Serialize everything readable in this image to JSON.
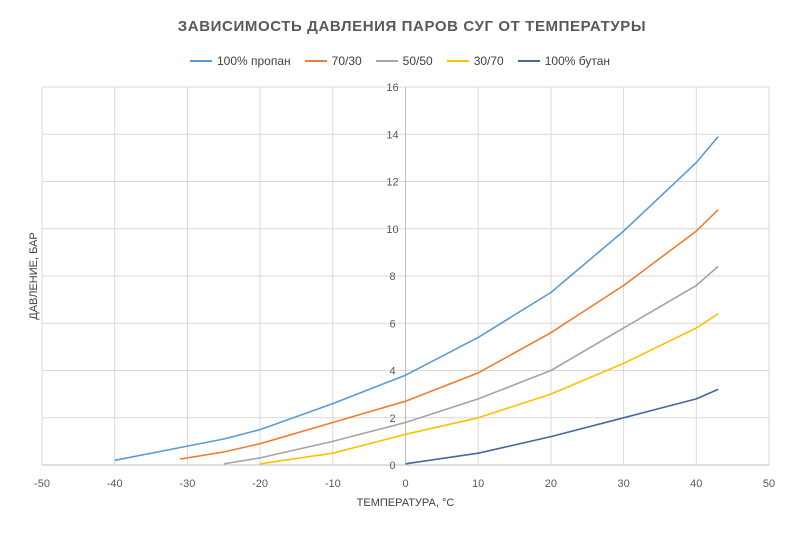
{
  "chart_data": {
    "type": "line",
    "title": "ЗАВИСИМОСТЬ ДАВЛЕНИЯ ПАРОВ СУГ ОТ ТЕМПЕРАТУРЫ",
    "xlabel": "ТЕМПЕРАТУРА, °С",
    "ylabel": "ДАВЛЕНИЕ, БАР",
    "xlim": [
      -50,
      50
    ],
    "ylim": [
      0,
      16
    ],
    "x_ticks": [
      -50,
      -40,
      -30,
      -20,
      -10,
      0,
      10,
      20,
      30,
      40,
      50
    ],
    "y_ticks": [
      0,
      2,
      4,
      6,
      8,
      10,
      12,
      14,
      16
    ],
    "grid": true,
    "legend_position": "top",
    "series": [
      {
        "name": "100% пропан",
        "color": "#5B9BD5",
        "points": [
          [
            -40,
            0.2
          ],
          [
            -30,
            0.8
          ],
          [
            -25,
            1.1
          ],
          [
            -20,
            1.5
          ],
          [
            -10,
            2.6
          ],
          [
            0,
            3.8
          ],
          [
            10,
            5.4
          ],
          [
            20,
            7.3
          ],
          [
            30,
            9.9
          ],
          [
            40,
            12.8
          ],
          [
            43,
            13.9
          ]
        ]
      },
      {
        "name": "70/30",
        "color": "#ED7D31",
        "points": [
          [
            -31,
            0.25
          ],
          [
            -25,
            0.55
          ],
          [
            -20,
            0.9
          ],
          [
            -10,
            1.8
          ],
          [
            0,
            2.7
          ],
          [
            10,
            3.9
          ],
          [
            20,
            5.6
          ],
          [
            30,
            7.6
          ],
          [
            40,
            9.9
          ],
          [
            43,
            10.8
          ]
        ]
      },
      {
        "name": "50/50",
        "color": "#A5A5A5",
        "points": [
          [
            -25,
            0.05
          ],
          [
            -20,
            0.3
          ],
          [
            -10,
            1.0
          ],
          [
            0,
            1.8
          ],
          [
            10,
            2.8
          ],
          [
            20,
            4.0
          ],
          [
            30,
            5.8
          ],
          [
            40,
            7.6
          ],
          [
            43,
            8.4
          ]
        ]
      },
      {
        "name": "30/70",
        "color": "#FFC000",
        "points": [
          [
            -20,
            0.05
          ],
          [
            -10,
            0.5
          ],
          [
            0,
            1.3
          ],
          [
            10,
            2.0
          ],
          [
            20,
            3.0
          ],
          [
            30,
            4.3
          ],
          [
            40,
            5.8
          ],
          [
            43,
            6.4
          ]
        ]
      },
      {
        "name": "100% бутан",
        "color": "#44689F",
        "points": [
          [
            0,
            0.05
          ],
          [
            10,
            0.5
          ],
          [
            20,
            1.2
          ],
          [
            30,
            2.0
          ],
          [
            40,
            2.8
          ],
          [
            43,
            3.2
          ]
        ]
      }
    ]
  }
}
